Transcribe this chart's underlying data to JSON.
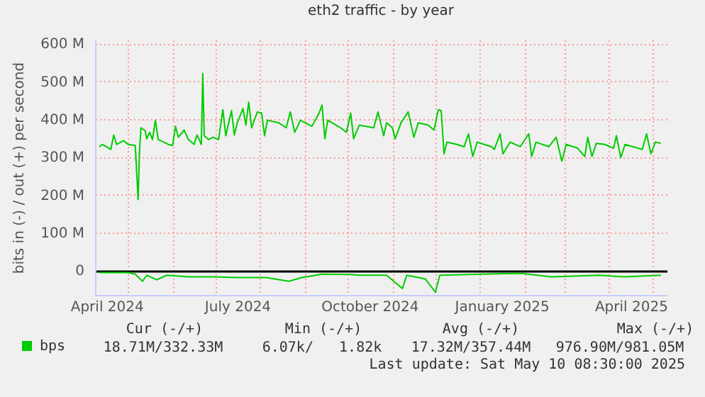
{
  "chart_data": {
    "type": "line",
    "title": "eth2 traffic - by year",
    "ylabel": "bits in (-) / out (+) per second",
    "xlim": [
      "2024-04-08",
      "2025-05-11"
    ],
    "xticks": [
      {
        "value": "2024-04-16",
        "label": "April 2024"
      },
      {
        "value": "2024-05-01",
        "label": null
      },
      {
        "value": "2024-06-01",
        "label": null
      },
      {
        "value": "2024-07-01",
        "label": null
      },
      {
        "value": "2024-07-16",
        "label": "July 2024"
      },
      {
        "value": "2024-08-01",
        "label": null
      },
      {
        "value": "2024-09-01",
        "label": null
      },
      {
        "value": "2024-10-01",
        "label": null
      },
      {
        "value": "2024-10-16",
        "label": "October 2024"
      },
      {
        "value": "2024-11-01",
        "label": null
      },
      {
        "value": "2024-12-01",
        "label": null
      },
      {
        "value": "2025-01-01",
        "label": null
      },
      {
        "value": "2025-01-16",
        "label": "January 2025"
      },
      {
        "value": "2025-02-01",
        "label": null
      },
      {
        "value": "2025-03-01",
        "label": null
      },
      {
        "value": "2025-04-01",
        "label": null
      },
      {
        "value": "2025-04-16",
        "label": "April 2025"
      },
      {
        "value": "2025-05-01",
        "label": null
      }
    ],
    "ylim": [
      -65,
      610
    ],
    "yticks": [
      0,
      {
        "value": 100,
        "label": "100 M"
      },
      {
        "value": 200,
        "label": "200 M"
      },
      {
        "value": 300,
        "label": "300 M"
      },
      {
        "value": 400,
        "label": "400 M"
      },
      {
        "value": 500,
        "label": "500 M"
      },
      {
        "value": 600,
        "label": "600 M"
      }
    ],
    "grid": true,
    "legend": "bottom left",
    "series": [
      {
        "name": "bps",
        "color": "#00cc00",
        "x": [
          "2024-04-11",
          "2024-04-13",
          "2024-04-19",
          "2024-04-21",
          "2024-04-23",
          "2024-04-28",
          "2024-05-01",
          "2024-05-06",
          "2024-05-08",
          "2024-05-09",
          "2024-05-10",
          "2024-05-13",
          "2024-05-14",
          "2024-05-16",
          "2024-05-18",
          "2024-05-20",
          "2024-05-22",
          "2024-05-26",
          "2024-05-29",
          "2024-06-01",
          "2024-06-03",
          "2024-06-05",
          "2024-06-09",
          "2024-06-12",
          "2024-06-16",
          "2024-06-18",
          "2024-06-21",
          "2024-06-22",
          "2024-06-23",
          "2024-06-26",
          "2024-06-29",
          "2024-07-03",
          "2024-07-06",
          "2024-07-08",
          "2024-07-12",
          "2024-07-14",
          "2024-07-16",
          "2024-07-20",
          "2024-07-22",
          "2024-07-24",
          "2024-07-26",
          "2024-07-30",
          "2024-08-02",
          "2024-08-04",
          "2024-08-06",
          "2024-08-14",
          "2024-08-19",
          "2024-08-22",
          "2024-08-25",
          "2024-08-29",
          "2024-09-06",
          "2024-09-11",
          "2024-09-13",
          "2024-09-15",
          "2024-09-17",
          "2024-09-26",
          "2024-09-30",
          "2024-10-03",
          "2024-10-05",
          "2024-10-09",
          "2024-10-19",
          "2024-10-22",
          "2024-10-26",
          "2024-10-28",
          "2024-11-01",
          "2024-11-03",
          "2024-11-07",
          "2024-11-12",
          "2024-11-16",
          "2024-11-19",
          "2024-11-26",
          "2024-11-30",
          "2024-12-03",
          "2024-12-05",
          "2024-12-07",
          "2024-12-09",
          "2024-12-16",
          "2024-12-21",
          "2024-12-24",
          "2024-12-27",
          "2024-12-30",
          "2025-01-09",
          "2025-01-11",
          "2025-01-15",
          "2025-01-17",
          "2025-01-22",
          "2025-01-29",
          "2025-02-04",
          "2025-02-06",
          "2025-02-09",
          "2025-02-18",
          "2025-02-23",
          "2025-02-27",
          "2025-03-02",
          "2025-03-10",
          "2025-03-15",
          "2025-03-17",
          "2025-03-20",
          "2025-03-23",
          "2025-03-29",
          "2025-04-04",
          "2025-04-06",
          "2025-04-09",
          "2025-04-12",
          "2025-04-21",
          "2025-04-24",
          "2025-04-27",
          "2025-04-30",
          "2025-05-03",
          "2025-05-07"
        ],
        "values": [
          327,
          333,
          320,
          358,
          333,
          343,
          333,
          330,
          187,
          320,
          377,
          369,
          348,
          365,
          346,
          397,
          346,
          339,
          333,
          330,
          381,
          352,
          371,
          346,
          333,
          358,
          333,
          521,
          356,
          346,
          352,
          346,
          425,
          356,
          422,
          358,
          390,
          428,
          384,
          445,
          377,
          419,
          416,
          356,
          397,
          390,
          377,
          419,
          365,
          397,
          381,
          416,
          437,
          348,
          397,
          377,
          365,
          416,
          348,
          384,
          377,
          419,
          356,
          390,
          377,
          348,
          390,
          419,
          352,
          390,
          384,
          371,
          425,
          422,
          308,
          339,
          333,
          327,
          361,
          301,
          339,
          327,
          320,
          361,
          308,
          339,
          327,
          361,
          301,
          339,
          327,
          352,
          289,
          333,
          323,
          301,
          352,
          301,
          336,
          333,
          323,
          356,
          298,
          333,
          323,
          320,
          361,
          308,
          339,
          336
        ]
      },
      {
        "color": "#00cc00",
        "x": [
          "2024-04-11",
          "2024-05-01",
          "2024-05-06",
          "2024-05-11",
          "2024-05-14",
          "2024-05-21",
          "2024-05-28",
          "2024-06-12",
          "2024-06-29",
          "2024-07-16",
          "2024-08-05",
          "2024-08-21",
          "2024-08-30",
          "2024-09-13",
          "2024-10-03",
          "2024-10-09",
          "2024-10-28",
          "2024-11-08",
          "2024-11-11",
          "2024-11-24",
          "2024-12-01",
          "2024-12-04",
          "2025-01-02",
          "2025-01-29",
          "2025-02-20",
          "2025-03-25",
          "2025-04-11",
          "2025-05-07"
        ],
        "values": [
          -6,
          -6,
          -10,
          -29,
          -13,
          -25,
          -13,
          -17,
          -17,
          -19,
          -19,
          -29,
          -19,
          -10,
          -11,
          -13,
          -13,
          -48,
          -13,
          -23,
          -58,
          -13,
          -10,
          -8,
          -17,
          -13,
          -17,
          -13
        ]
      }
    ],
    "annotations": [
      "Cur (-/+)",
      "Min (-/+)",
      "Avg (-/+)",
      "Max (-/+)",
      "18.71M/332.33M",
      "6.07k/   1.82k",
      "17.32M/357.44M",
      "976.90M/981.05M",
      "Last update: Sat May 10 08:30:00 2025"
    ]
  }
}
